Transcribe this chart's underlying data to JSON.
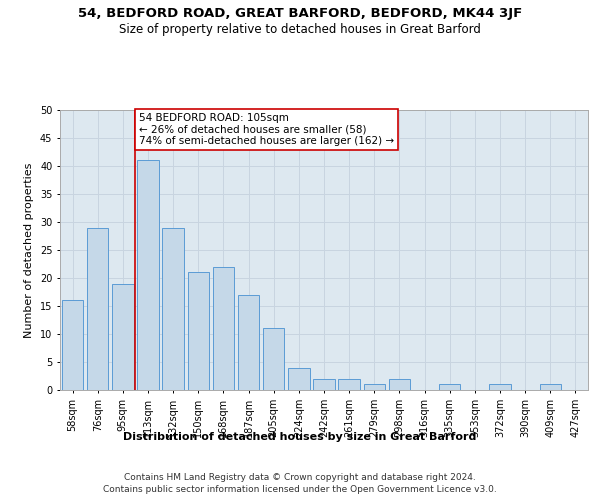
{
  "title1": "54, BEDFORD ROAD, GREAT BARFORD, BEDFORD, MK44 3JF",
  "title2": "Size of property relative to detached houses in Great Barford",
  "xlabel": "Distribution of detached houses by size in Great Barford",
  "ylabel": "Number of detached properties",
  "footnote1": "Contains HM Land Registry data © Crown copyright and database right 2024.",
  "footnote2": "Contains public sector information licensed under the Open Government Licence v3.0.",
  "annotation_line1": "54 BEDFORD ROAD: 105sqm",
  "annotation_line2": "← 26% of detached houses are smaller (58)",
  "annotation_line3": "74% of semi-detached houses are larger (162) →",
  "bar_color": "#c5d8e8",
  "bar_edge_color": "#5b9bd5",
  "grid_color": "#c8d4e0",
  "background_color": "#dde8f0",
  "vline_color": "#cc0000",
  "annotation_box_color": "#cc0000",
  "categories": [
    "58sqm",
    "76sqm",
    "95sqm",
    "113sqm",
    "132sqm",
    "150sqm",
    "168sqm",
    "187sqm",
    "205sqm",
    "224sqm",
    "242sqm",
    "261sqm",
    "279sqm",
    "298sqm",
    "316sqm",
    "335sqm",
    "353sqm",
    "372sqm",
    "390sqm",
    "409sqm",
    "427sqm"
  ],
  "values": [
    16,
    29,
    19,
    41,
    29,
    21,
    22,
    17,
    11,
    4,
    2,
    2,
    1,
    2,
    0,
    1,
    0,
    1,
    0,
    1,
    0
  ],
  "ylim": [
    0,
    50
  ],
  "yticks": [
    0,
    5,
    10,
    15,
    20,
    25,
    30,
    35,
    40,
    45,
    50
  ],
  "vline_x_index": 2.5,
  "title_fontsize": 9.5,
  "subtitle_fontsize": 8.5,
  "axis_label_fontsize": 8,
  "tick_fontsize": 7,
  "annotation_fontsize": 7.5,
  "footnote_fontsize": 6.5
}
